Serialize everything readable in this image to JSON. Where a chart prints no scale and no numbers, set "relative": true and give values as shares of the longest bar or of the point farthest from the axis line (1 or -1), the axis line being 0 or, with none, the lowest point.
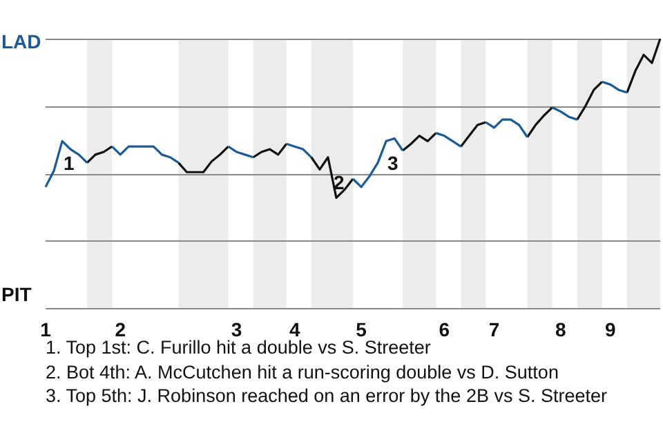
{
  "chart_data": {
    "type": "line",
    "relative": true,
    "categories": [
      "1",
      null,
      null,
      null,
      null,
      null,
      null,
      null,
      null,
      "2",
      null,
      null,
      null,
      null,
      null,
      null,
      null,
      null,
      null,
      null,
      null,
      null,
      null,
      "3",
      null,
      null,
      null,
      null,
      null,
      null,
      "4",
      null,
      null,
      null,
      null,
      null,
      null,
      null,
      "5",
      null,
      null,
      null,
      null,
      null,
      null,
      null,
      null,
      null,
      "6",
      null,
      null,
      null,
      null,
      null,
      "7",
      null,
      null,
      null,
      null,
      null,
      null,
      null,
      "8",
      null,
      null,
      null,
      null,
      null,
      "9",
      null,
      null,
      null,
      null,
      null,
      null
    ],
    "grid": "y",
    "marker": "none",
    "series": [
      {
        "color": "#1a5a96",
        "values": [
          0.45,
          0.51,
          0.62,
          0.59,
          0.57,
          0.54,
          null,
          null,
          0.6,
          0.57,
          0.6,
          0.6,
          0.6,
          0.6,
          0.57,
          0.56,
          0.54,
          null,
          null,
          null,
          null,
          null,
          0.6,
          0.58,
          0.57,
          0.56,
          null,
          null,
          null,
          0.61,
          0.6,
          0.59,
          0.56,
          null,
          null,
          null,
          null,
          0.48,
          0.45,
          0.49,
          0.54,
          0.62,
          0.63,
          0.585,
          null,
          null,
          null,
          0.65,
          0.64,
          0.62,
          0.6,
          null,
          null,
          0.69,
          0.67,
          0.7,
          0.7,
          0.68,
          0.635,
          null,
          null,
          0.745,
          0.73,
          0.71,
          0.7,
          null,
          null,
          0.84,
          0.83,
          0.81,
          0.8,
          null,
          null,
          null,
          null
        ]
      },
      {
        "color": "#111111",
        "values": [
          null,
          null,
          null,
          null,
          null,
          0.54,
          0.57,
          0.58,
          0.6,
          null,
          null,
          null,
          null,
          null,
          null,
          null,
          0.54,
          0.505,
          0.505,
          0.505,
          0.545,
          0.57,
          0.6,
          null,
          null,
          0.56,
          0.58,
          0.59,
          0.57,
          0.61,
          null,
          null,
          0.56,
          0.515,
          0.56,
          0.41,
          0.44,
          0.48,
          null,
          null,
          null,
          null,
          null,
          0.585,
          0.61,
          0.64,
          0.62,
          0.65,
          null,
          null,
          0.6,
          0.64,
          0.68,
          0.69,
          null,
          null,
          null,
          null,
          0.635,
          0.68,
          0.715,
          0.745,
          null,
          null,
          0.7,
          0.75,
          0.81,
          0.84,
          null,
          null,
          0.8,
          0.88,
          0.94,
          0.91,
          1
        ]
      }
    ],
    "annotations": [
      "LAD",
      "PIT",
      "1",
      "2",
      "3",
      "1. Top 1st: C. Furillo hit a double vs S. Streeter",
      "2. Bot 4th: A. McCutchen hit a run-scoring double vs D. Sutton",
      "3. Top 5th: J. Robinson reached on an error by the 2B vs S. Streeter"
    ]
  }
}
